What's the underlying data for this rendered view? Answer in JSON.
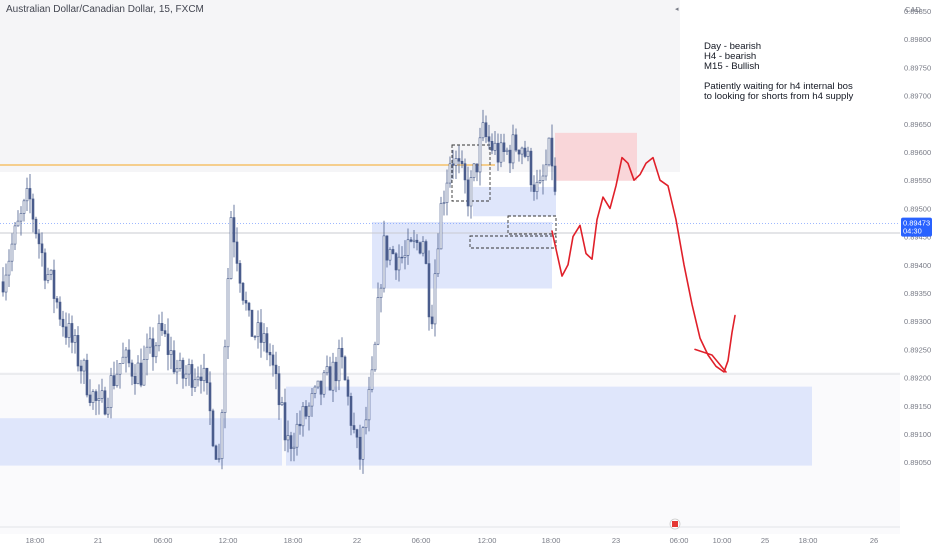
{
  "header": {
    "symbol_title": "Australian Dollar/Canadian Dollar, 15, FXCM"
  },
  "note": {
    "lines": [
      "Day - bearish",
      "H4 - bearish",
      "M15 - Bullish",
      "",
      "Patiently waiting for h4 internal bos",
      "to looking for shorts from h4 supply"
    ]
  },
  "price_axis": {
    "currency": "CAD",
    "current_price": "0.89473",
    "countdown": "04:30"
  },
  "colors": {
    "candle": "#4a5d8c",
    "demand_zone": "#dfe6fb",
    "supply_zone": "#f9d6d9",
    "forecast_line": "#e0202a",
    "orange_line": "#f5a623",
    "price_label": "#2962ff"
  },
  "chart_data": {
    "type": "candlestick",
    "title": "Australian Dollar/Canadian Dollar, 15, FXCM",
    "x_ticks": [
      "18:00",
      "21",
      "06:00",
      "12:00",
      "18:00",
      "22",
      "06:00",
      "12:00",
      "18:00",
      "23",
      "06:00",
      "10:00",
      "25",
      "18:00",
      "26"
    ],
    "y_ticks": [
      0.8985,
      0.898,
      0.8975,
      0.897,
      0.8965,
      0.896,
      0.8955,
      0.895,
      0.8945,
      0.894,
      0.8935,
      0.893,
      0.8925,
      0.892,
      0.8915,
      0.891,
      0.8905
    ],
    "ylim": [
      0.8902,
      0.8991
    ],
    "last_price": 0.89473,
    "grid": false,
    "price_waypoints": [
      [
        0,
        0.8937
      ],
      [
        12,
        0.8944
      ],
      [
        28,
        0.8952
      ],
      [
        42,
        0.8941
      ],
      [
        62,
        0.893
      ],
      [
        76,
        0.8924
      ],
      [
        98,
        0.8914
      ],
      [
        120,
        0.8923
      ],
      [
        140,
        0.8921
      ],
      [
        160,
        0.8928
      ],
      [
        180,
        0.892
      ],
      [
        200,
        0.8922
      ],
      [
        218,
        0.8905
      ],
      [
        230,
        0.8949
      ],
      [
        248,
        0.8929
      ],
      [
        268,
        0.8925
      ],
      [
        286,
        0.8908
      ],
      [
        310,
        0.8915
      ],
      [
        340,
        0.8923
      ],
      [
        358,
        0.8905
      ],
      [
        372,
        0.892
      ],
      [
        382,
        0.8943
      ],
      [
        404,
        0.8941
      ],
      [
        422,
        0.8945
      ],
      [
        430,
        0.893
      ],
      [
        438,
        0.8948
      ],
      [
        450,
        0.896
      ],
      [
        468,
        0.8952
      ],
      [
        482,
        0.8963
      ],
      [
        500,
        0.8959
      ],
      [
        520,
        0.8962
      ],
      [
        538,
        0.8952
      ],
      [
        550,
        0.8961
      ],
      [
        556,
        0.8947
      ]
    ],
    "zones": [
      {
        "kind": "demand",
        "x_from": 0,
        "x_to": 282,
        "price_from": 0.89044,
        "price_to": 0.89128
      },
      {
        "kind": "demand",
        "x_from": 286,
        "x_to": 812,
        "price_from": 0.89044,
        "price_to": 0.89184
      },
      {
        "kind": "demand",
        "x_from": 372,
        "x_to": 552,
        "price_from": 0.89358,
        "price_to": 0.89476
      },
      {
        "kind": "demand",
        "x_from": 473,
        "x_to": 556,
        "price_from": 0.89486,
        "price_to": 0.89538
      },
      {
        "kind": "supply",
        "x_from": 555,
        "x_to": 637,
        "price_from": 0.89549,
        "price_to": 0.89634
      }
    ],
    "forecast_path": [
      [
        552,
        0.8946
      ],
      [
        557,
        0.8942
      ],
      [
        562,
        0.8938
      ],
      [
        568,
        0.894
      ],
      [
        573,
        0.8945
      ],
      [
        580,
        0.8947
      ],
      [
        586,
        0.8942
      ],
      [
        592,
        0.8941
      ],
      [
        597,
        0.8948
      ],
      [
        603,
        0.8952
      ],
      [
        610,
        0.895
      ],
      [
        616,
        0.8954
      ],
      [
        622,
        0.8959
      ],
      [
        628,
        0.8958
      ],
      [
        634,
        0.8955
      ],
      [
        640,
        0.8956
      ],
      [
        646,
        0.8958
      ],
      [
        653,
        0.8959
      ],
      [
        660,
        0.8955
      ],
      [
        668,
        0.8954
      ],
      [
        676,
        0.8948
      ],
      [
        684,
        0.894
      ],
      [
        692,
        0.8933
      ],
      [
        700,
        0.8927
      ],
      [
        708,
        0.8924
      ],
      [
        716,
        0.8922
      ],
      [
        724,
        0.8921
      ],
      [
        728,
        0.8923
      ],
      [
        732,
        0.8928
      ],
      [
        735,
        0.8931
      ]
    ],
    "forecast_tail": [
      [
        695,
        0.8925
      ],
      [
        712,
        0.8924
      ],
      [
        726,
        0.8921
      ]
    ]
  }
}
